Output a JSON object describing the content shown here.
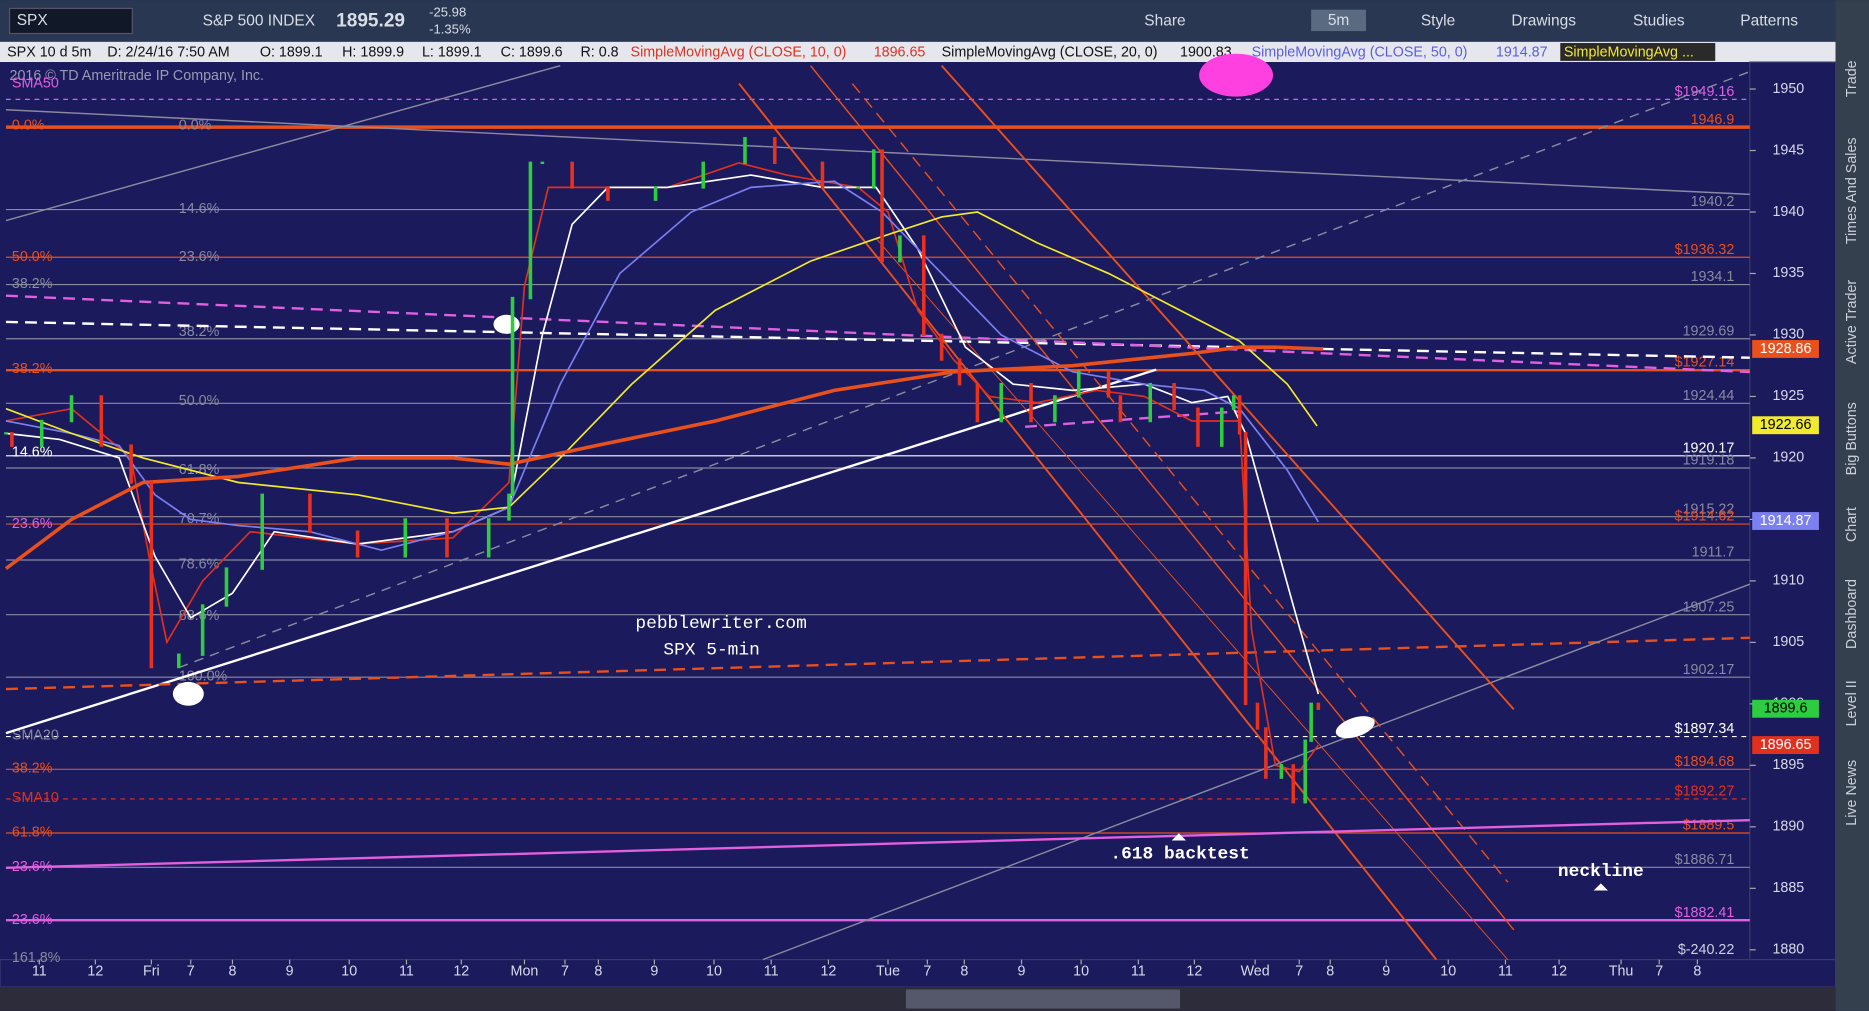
{
  "toolbar": {
    "symbol": "SPX",
    "description": "S&P 500 INDEX",
    "last": "1895.29",
    "change": "-25.98",
    "change_pct": "-1.35%",
    "buttons": [
      "Share",
      "5m",
      "Style",
      "Drawings",
      "Studies",
      "Patterns"
    ]
  },
  "header": {
    "items": [
      "SPX 10 d 5m",
      "D: 2/24/16 7:50 AM",
      "O: 1899.1",
      "H: 1899.9",
      "L: 1899.1",
      "C: 1899.6",
      "R: 0.8"
    ],
    "copyright": "2016 © TD Ameritrade IP Company, Inc."
  },
  "side_tabs": [
    "Trade",
    "Times And Sales",
    "Active Trader",
    "Big Buttons",
    "Chart",
    "Dashboard",
    "Level II",
    "Live News"
  ],
  "annotations": [
    "pebblewriter.com",
    "SPX 5-min",
    ".618 backtest",
    "neckline",
    "$-240.22"
  ],
  "chart_data": {
    "type": "candlestick",
    "ylim": [
      1879.2,
      1951.9
    ],
    "yticks": [
      1880,
      1885,
      1890,
      1895,
      1900,
      1905,
      1910,
      1915,
      1920,
      1925,
      1930,
      1935,
      1940,
      1945,
      1950
    ],
    "xlim": [
      0,
      292.6
    ],
    "xticks": [
      {
        "value": 5.6,
        "label": "11"
      },
      {
        "value": 15,
        "label": "12"
      },
      {
        "value": 24.4,
        "label": "Fri"
      },
      {
        "value": 31,
        "label": "7"
      },
      {
        "value": 38,
        "label": "8"
      },
      {
        "value": 47.6,
        "label": "9"
      },
      {
        "value": 57.6,
        "label": "10"
      },
      {
        "value": 67.2,
        "label": "11"
      },
      {
        "value": 76.4,
        "label": "12"
      },
      {
        "value": 87,
        "label": "Mon"
      },
      {
        "value": 93.8,
        "label": "7"
      },
      {
        "value": 99.4,
        "label": "8"
      },
      {
        "value": 108.8,
        "label": "9"
      },
      {
        "value": 118.8,
        "label": "10"
      },
      {
        "value": 128.4,
        "label": "11"
      },
      {
        "value": 138,
        "label": "12"
      },
      {
        "value": 148,
        "label": "Tue"
      },
      {
        "value": 154.6,
        "label": "7"
      },
      {
        "value": 160.8,
        "label": "8"
      },
      {
        "value": 170.4,
        "label": "9"
      },
      {
        "value": 180.4,
        "label": "10"
      },
      {
        "value": 190,
        "label": "11"
      },
      {
        "value": 199.4,
        "label": "12"
      },
      {
        "value": 209.6,
        "label": "Wed"
      },
      {
        "value": 217,
        "label": "7"
      },
      {
        "value": 222.2,
        "label": "8"
      },
      {
        "value": 231.6,
        "label": "9"
      },
      {
        "value": 242,
        "label": "10"
      },
      {
        "value": 251.6,
        "label": "11"
      },
      {
        "value": 260.6,
        "label": "12"
      },
      {
        "value": 271,
        "label": "Thu"
      },
      {
        "value": 277.4,
        "label": "7"
      },
      {
        "value": 283.8,
        "label": "8"
      }
    ],
    "price": {
      "up_color": "#2ecc40",
      "down_color": "#e8321e",
      "badge": 1899.6,
      "x": [
        0,
        1,
        6,
        11,
        16,
        21,
        24.4,
        29,
        33,
        37,
        43,
        51,
        59,
        67,
        74,
        81,
        84.4,
        85,
        88,
        90,
        95,
        101,
        109,
        117,
        124,
        129,
        137,
        143,
        145.6,
        147,
        150,
        154,
        157,
        160,
        163,
        167,
        172,
        176,
        180,
        185,
        187,
        192,
        196,
        200,
        204,
        206,
        207,
        208,
        210,
        211.4,
        214,
        216,
        218,
        219,
        220.2
      ],
      "values": [
        1922,
        1921,
        1923,
        1925,
        1921,
        1918,
        1903,
        1904,
        1908,
        1911,
        1917,
        1914,
        1912,
        1915,
        1912,
        1915,
        1917,
        1933,
        1944,
        1944,
        1942,
        1941,
        1942,
        1944,
        1946,
        1944,
        1942,
        1942,
        1945,
        1936,
        1938,
        1930,
        1928,
        1926,
        1923,
        1926,
        1923,
        1925,
        1927,
        1925,
        1923,
        1926,
        1924,
        1921,
        1924,
        1925,
        1922,
        1900,
        1898,
        1894,
        1895,
        1892,
        1897,
        1900,
        1899.6
      ]
    },
    "series": [
      {
        "name": "SimpleMovingAvg (CLOSE, 10, 0)",
        "color": "#e0301e",
        "last": 1896.65,
        "badge": true,
        "x": [
          0,
          11,
          21,
          24,
          27,
          33,
          41,
          59,
          75,
          84.4,
          87,
          91,
          99,
          111,
          123,
          131,
          143,
          148,
          153,
          159,
          165,
          173,
          183,
          191,
          199,
          207,
          209,
          213,
          217,
          220.2
        ],
        "values": [
          1923,
          1924,
          1920,
          1912,
          1905,
          1910,
          1914,
          1913,
          1913.5,
          1918,
          1934,
          1942,
          1942,
          1942,
          1944,
          1943,
          1942,
          1940,
          1932,
          1928,
          1925,
          1924.5,
          1925.5,
          1925,
          1923,
          1923,
          1906,
          1895,
          1894.5,
          1896.65
        ]
      },
      {
        "name": "SimpleMovingAvg (CLOSE, 20, 0)",
        "color": "#ffffff",
        "last": 1900.83,
        "badge": false,
        "x": [
          0,
          9,
          19,
          25,
          31,
          38,
          45,
          59,
          75,
          84.4,
          90,
          95,
          101,
          111,
          125,
          137,
          146,
          153,
          161,
          169,
          179,
          191,
          199,
          205,
          208,
          212,
          216,
          220.2
        ],
        "values": [
          1922,
          1921.5,
          1920,
          1912,
          1907,
          1909,
          1914,
          1913,
          1914,
          1916,
          1930,
          1939,
          1942,
          1942,
          1943,
          1942,
          1942,
          1937,
          1929,
          1926,
          1925.5,
          1926,
          1924.5,
          1925,
          1922,
          1915,
          1908,
          1900.8
        ]
      },
      {
        "name": "SimpleMovingAvg (CLOSE, 50, 0)",
        "color": "#7b7ff0",
        "last": 1914.87,
        "badge": true,
        "x": [
          0,
          11,
          19,
          25,
          31,
          39,
          51,
          63,
          75,
          84.4,
          93,
          103,
          115,
          125,
          139,
          147,
          157,
          167,
          179,
          191,
          201,
          207,
          215,
          220.2
        ],
        "values": [
          1923,
          1922,
          1921,
          1917,
          1915,
          1914.5,
          1914,
          1912.5,
          1914,
          1916,
          1926,
          1935,
          1940,
          1942,
          1942.5,
          1940,
          1935,
          1930,
          1927,
          1926,
          1925.5,
          1924,
          1919,
          1914.8
        ]
      },
      {
        "name": "SimpleMovingAvg ...",
        "color": "#f2ea2c",
        "last": 1922.66,
        "badge": true,
        "x": [
          0,
          11,
          23,
          39,
          59,
          75,
          84.4,
          93,
          105,
          119,
          135,
          147,
          157,
          163,
          173,
          185,
          195,
          207,
          215,
          220
        ],
        "values": [
          1924,
          1922,
          1920,
          1918,
          1917,
          1915.5,
          1916,
          1920,
          1926,
          1932,
          1936,
          1938,
          1939.6,
          1940,
          1937.5,
          1935,
          1932.5,
          1929.5,
          1926,
          1922.6
        ]
      },
      {
        "color": "#e8501e",
        "last": 1928.86,
        "badge": true,
        "width": 3,
        "x": [
          0,
          11,
          23,
          39,
          59,
          75,
          84.4,
          99,
          119,
          139,
          159,
          179,
          199,
          207,
          213,
          221
        ],
        "values": [
          1911,
          1915,
          1918,
          1918.5,
          1920,
          1920,
          1919.5,
          1921,
          1923,
          1925.5,
          1927,
          1927.5,
          1928.5,
          1929,
          1929,
          1928.86
        ]
      }
    ],
    "levels": [
      {
        "value": 1949.16,
        "label": "$1949.16",
        "color": "#e060e0",
        "dash": true
      },
      {
        "value": 1946.9,
        "color": "#e8501e",
        "width": 3
      },
      {
        "value": 1940.2,
        "color": "#8a8aa0"
      },
      {
        "value": 1936.32,
        "label": "$1936.32",
        "color": "#e8501e"
      },
      {
        "value": 1934.1,
        "color": "#8a8aa0"
      },
      {
        "value": 1929.69,
        "color": "#8a8aa0"
      },
      {
        "value": 1927.14,
        "label": "$1927.14",
        "color": "#e8501e",
        "width": 2
      },
      {
        "value": 1924.44,
        "color": "#8a8aa0"
      },
      {
        "value": 1920.17,
        "color": "#ffffff"
      },
      {
        "value": 1919.18,
        "color": "#8a8aa0"
      },
      {
        "value": 1915.22,
        "color": "#8a8aa0"
      },
      {
        "value": 1914.62,
        "label": "$1914.62",
        "color": "#e8501e"
      },
      {
        "value": 1911.7,
        "color": "#8a8aa0"
      },
      {
        "value": 1907.25,
        "color": "#8a8aa0"
      },
      {
        "value": 1902.17,
        "color": "#8a8aa0"
      },
      {
        "value": 1897.34,
        "label": "$1897.34",
        "color": "#ffffff",
        "dash": true
      },
      {
        "value": 1894.68,
        "label": "$1894.68",
        "color": "#e8501e"
      },
      {
        "value": 1892.27,
        "label": "$1892.27",
        "color": "#e8301e",
        "dash": true
      },
      {
        "value": 1889.5,
        "label": "$1889.5",
        "color": "#e8501e"
      },
      {
        "value": 1886.71,
        "label": "$1886.71",
        "color": "#8a8aa0"
      },
      {
        "value": 1882.41,
        "label": "$1882.41",
        "color": "#e060e0",
        "width": 2
      }
    ],
    "left_labels": [
      {
        "text": "SMA50",
        "price": 1951,
        "color": "#e060e0"
      },
      {
        "text": "0.0%",
        "price": 1947.6,
        "color": "#e8501e"
      },
      {
        "text": "50.0%",
        "price": 1936.9,
        "color": "#e8501e"
      },
      {
        "text": "38.2%",
        "price": 1934.7,
        "color": "#8a8aa0"
      },
      {
        "text": "38.2%",
        "price": 1927.8,
        "color": "#e8501e"
      },
      {
        "text": "14.6%",
        "price": 1921,
        "color": "#ffffff"
      },
      {
        "text": "23.6%",
        "price": 1915.2,
        "color": "#e060e0"
      },
      {
        "text": "SMA20",
        "price": 1898,
        "color": "#8a8aa0"
      },
      {
        "text": "38.2%",
        "price": 1895.3,
        "color": "#e8501e"
      },
      {
        "text": "SMA10",
        "price": 1892.9,
        "color": "#e8301e"
      },
      {
        "text": "61.8%",
        "price": 1890.1,
        "color": "#e8501e"
      },
      {
        "text": "23.6%",
        "price": 1887.3,
        "color": "#e060e0"
      },
      {
        "text": "23.6%",
        "price": 1883,
        "color": "#e060e0"
      },
      {
        "text": "161.8%",
        "price": 1879.9,
        "color": "#8a8aa0"
      }
    ],
    "fib_labels": [
      {
        "text": "0.0%",
        "price": 1947.6
      },
      {
        "text": "14.6%",
        "price": 1940.8
      },
      {
        "text": "23.6%",
        "price": 1936.9
      },
      {
        "text": "38.2%",
        "price": 1930.8
      },
      {
        "text": "50.0%",
        "price": 1925.2
      },
      {
        "text": "61.8%",
        "price": 1919.6
      },
      {
        "text": "70.7%",
        "price": 1915.6
      },
      {
        "text": "78.6%",
        "price": 1911.9
      },
      {
        "text": "88.6%",
        "price": 1907.7
      },
      {
        "text": "100.0%",
        "price": 1902.8
      }
    ]
  }
}
